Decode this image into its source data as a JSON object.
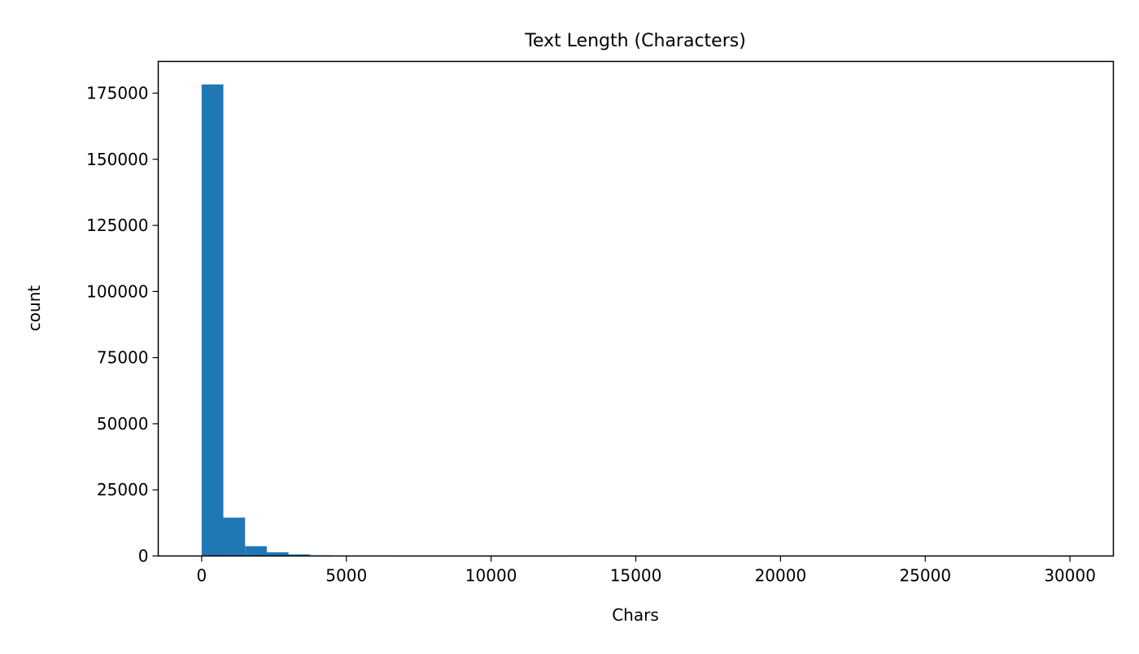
{
  "chart_data": {
    "type": "bar",
    "title": "Text Length (Characters)",
    "xlabel": "Chars",
    "ylabel": "count",
    "xlim": [
      -1500,
      31500
    ],
    "ylim": [
      0,
      187000
    ],
    "xticks": [
      0,
      5000,
      10000,
      15000,
      20000,
      25000,
      30000
    ],
    "yticks": [
      0,
      25000,
      50000,
      75000,
      100000,
      125000,
      150000,
      175000
    ],
    "bin_edges": [
      0,
      750,
      1500,
      2250,
      3000,
      3750,
      4500,
      5250,
      6000,
      6750,
      7500,
      8250,
      9000,
      9750,
      10500,
      11250,
      12000,
      12750,
      13500,
      14250,
      15000,
      15750,
      16500,
      17250,
      18000,
      18750,
      19500,
      20250,
      21000,
      21750,
      22500,
      23250,
      24000,
      24750,
      25500,
      26250,
      27000,
      27750,
      28500,
      29250,
      30000
    ],
    "values": [
      178300,
      14500,
      3700,
      1400,
      600,
      250,
      120,
      60,
      30,
      15,
      8,
      5,
      3,
      2,
      1,
      1,
      1,
      0,
      0,
      0,
      0,
      0,
      0,
      0,
      0,
      0,
      0,
      0,
      0,
      0,
      0,
      0,
      0,
      0,
      0,
      0,
      0,
      0,
      0,
      1
    ],
    "bar_color": "#1f77b4",
    "grid": false
  }
}
